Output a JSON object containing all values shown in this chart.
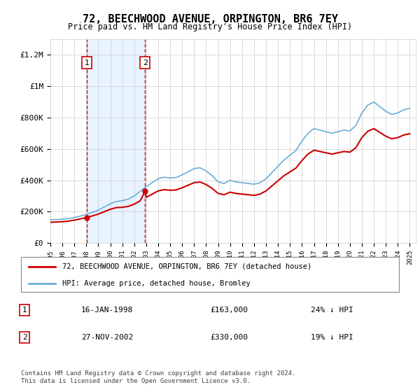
{
  "title": "72, BEECHWOOD AVENUE, ORPINGTON, BR6 7EY",
  "subtitle": "Price paid vs. HM Land Registry's House Price Index (HPI)",
  "legend_line1": "72, BEECHWOOD AVENUE, ORPINGTON, BR6 7EY (detached house)",
  "legend_line2": "HPI: Average price, detached house, Bromley",
  "transaction1_label": "1",
  "transaction1_date": "16-JAN-1998",
  "transaction1_price": 163000,
  "transaction1_hpi": "24% ↓ HPI",
  "transaction2_label": "2",
  "transaction2_date": "27-NOV-2002",
  "transaction2_price": 330000,
  "transaction2_hpi": "19% ↓ HPI",
  "footer": "Contains HM Land Registry data © Crown copyright and database right 2024.\nThis data is licensed under the Open Government Licence v3.0.",
  "hpi_color": "#6baed6",
  "price_color": "#cc0000",
  "shade_color": "#ddeeff",
  "transaction_color": "#cc0000",
  "ylabel_ticks": [
    "£0",
    "£200K",
    "£400K",
    "£600K",
    "£800K",
    "£1M",
    "£1.2M"
  ],
  "ylabel_values": [
    0,
    200000,
    400000,
    600000,
    800000,
    1000000,
    1200000
  ],
  "ylim": [
    0,
    1300000
  ],
  "xlim_start": 1995.0,
  "xlim_end": 2025.5
}
